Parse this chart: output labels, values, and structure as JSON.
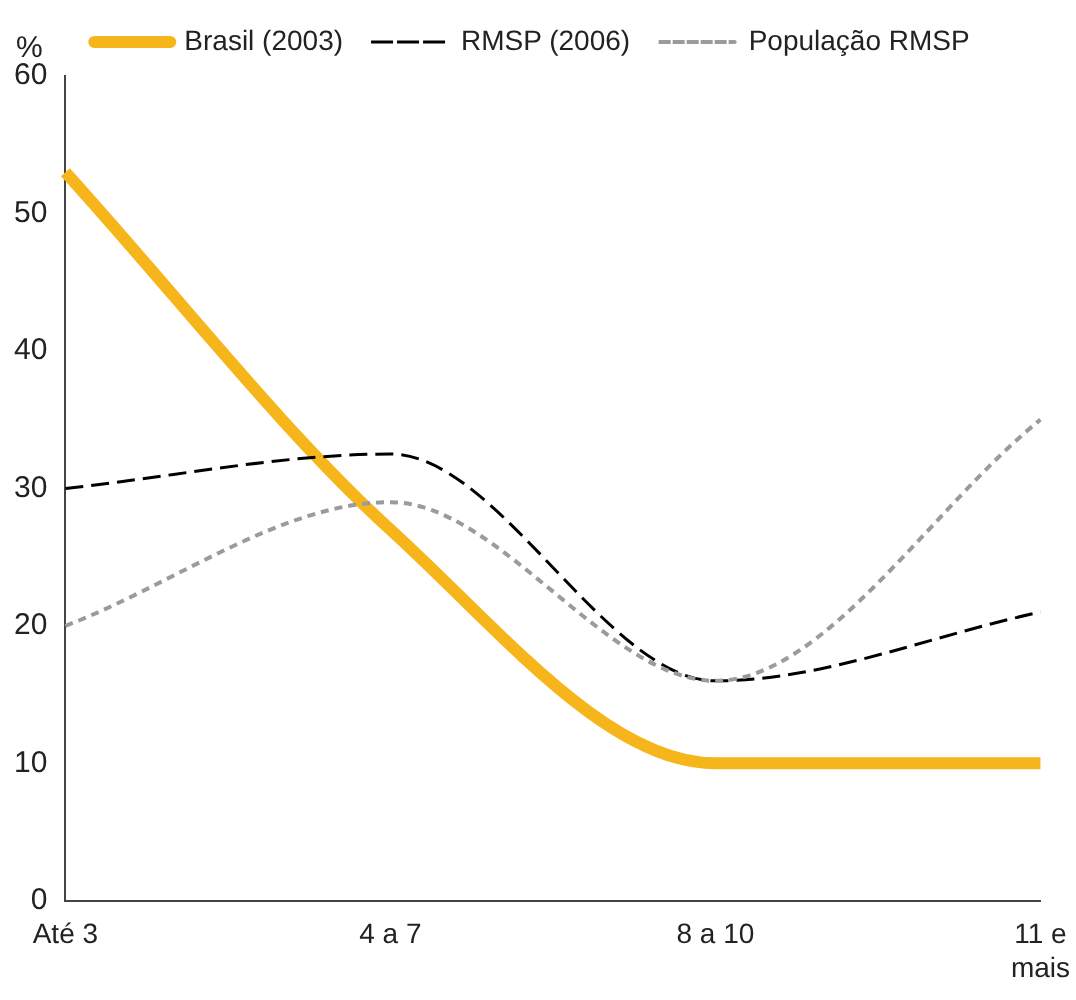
{
  "chart_data": {
    "type": "line",
    "ylabel": "%",
    "categories": [
      "Até 3",
      "4 a 7",
      "8 a 10",
      "11 e mais"
    ],
    "series": [
      {
        "name": "Brasil (2003)",
        "color": "#f7b51c",
        "values": [
          53,
          27,
          10,
          10
        ],
        "line_style": "solid"
      },
      {
        "name": "RMSP (2006)",
        "color": "#000000",
        "values": [
          30,
          32.5,
          16,
          21
        ],
        "line_style": "dashed"
      },
      {
        "name": "População RMSP",
        "color": "#9a9a9f",
        "values": [
          20,
          29,
          16,
          35
        ],
        "line_style": "dotted"
      }
    ],
    "ylim": [
      0,
      60
    ],
    "yticks": [
      0,
      10,
      20,
      30,
      40,
      50,
      60
    ],
    "grid": false,
    "legend": "top",
    "marker": "none"
  }
}
